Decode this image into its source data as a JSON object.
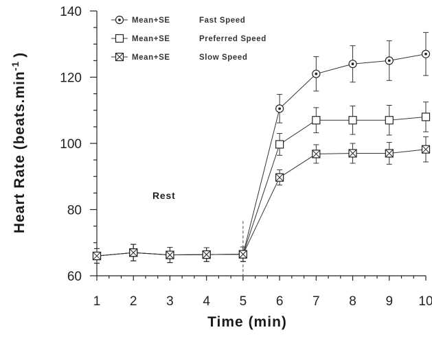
{
  "chart_data": {
    "type": "line",
    "x": [
      1,
      2,
      3,
      4,
      5,
      6,
      7,
      8,
      9,
      10
    ],
    "xlabel": "Time (min)",
    "ylabel_text": "Heart Rate (beats.min",
    "ylabel_sup": "-1",
    "ylabel_close": ")",
    "xlim": [
      1,
      10
    ],
    "ylim": [
      60,
      140
    ],
    "xticks": [
      "1",
      "2",
      "3",
      "4",
      "5",
      "6",
      "7",
      "8",
      "9",
      "10"
    ],
    "yticks": [
      "60",
      "80",
      "100",
      "120",
      "140"
    ],
    "grid": false,
    "legend_position": "top-left",
    "annotations": [
      {
        "text": "Rest"
      }
    ],
    "series": [
      {
        "name": "Fast Speed",
        "legend_prefix": "Mean+SE",
        "marker": "circle-dot",
        "values": [
          66,
          67,
          66.3,
          66.4,
          66.5,
          110.5,
          121,
          124,
          125,
          127
        ],
        "errors": [
          2.2,
          2.5,
          2.3,
          2.1,
          2.2,
          4.3,
          5.2,
          5.5,
          6.0,
          6.5
        ]
      },
      {
        "name": "Preferred Speed",
        "legend_prefix": "Mean+SE",
        "marker": "square",
        "values": [
          66,
          67,
          66.3,
          66.4,
          66.5,
          99.7,
          107,
          107,
          107,
          108
        ],
        "errors": [
          2.2,
          2.5,
          2.3,
          2.1,
          2.2,
          3.3,
          3.8,
          4.3,
          4.5,
          4.5
        ]
      },
      {
        "name": "Slow Speed",
        "legend_prefix": "Mean+SE",
        "marker": "square-x",
        "values": [
          66,
          67,
          66.3,
          66.4,
          66.5,
          89.7,
          96.8,
          97,
          97,
          98.2
        ],
        "errors": [
          2.2,
          2.5,
          2.3,
          2.1,
          2.2,
          2.3,
          2.8,
          3.0,
          3.3,
          3.8
        ]
      }
    ]
  }
}
